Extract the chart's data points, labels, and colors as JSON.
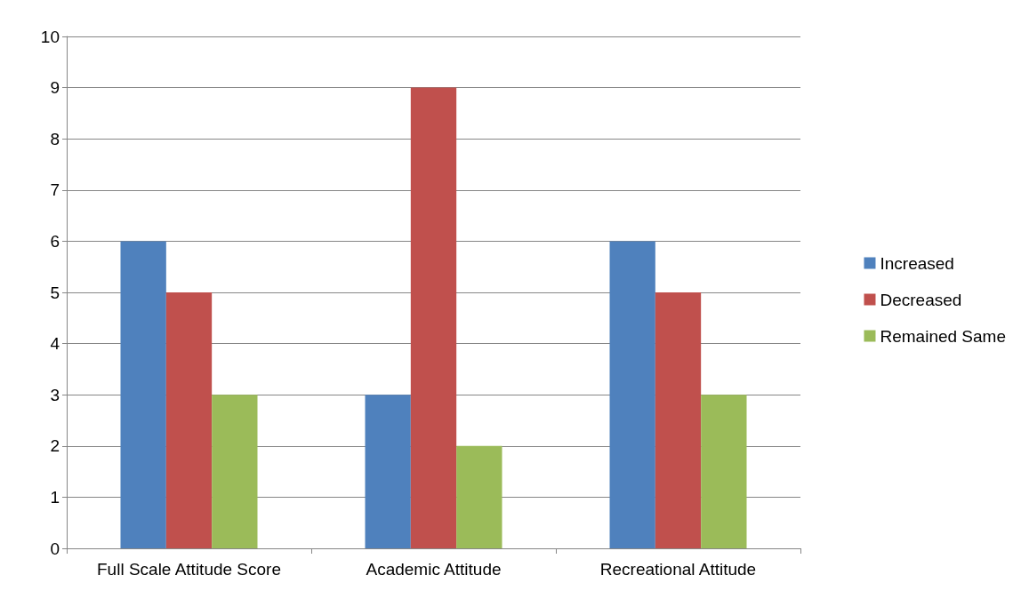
{
  "chart_data": {
    "type": "bar",
    "categories": [
      "Full Scale Attitude Score",
      "Academic Attitude",
      "Recreational Attitude"
    ],
    "series": [
      {
        "name": "Increased",
        "color": "#4f81bd",
        "values": [
          6,
          3,
          6
        ]
      },
      {
        "name": "Decreased",
        "color": "#c0504d",
        "values": [
          5,
          9,
          5
        ]
      },
      {
        "name": "Remained Same",
        "color": "#9bbb59",
        "values": [
          3,
          2,
          3
        ]
      }
    ],
    "ylim": [
      0,
      10
    ],
    "yticks": [
      0,
      1,
      2,
      3,
      4,
      5,
      6,
      7,
      8,
      9,
      10
    ],
    "grid": "y",
    "legend": "right"
  }
}
